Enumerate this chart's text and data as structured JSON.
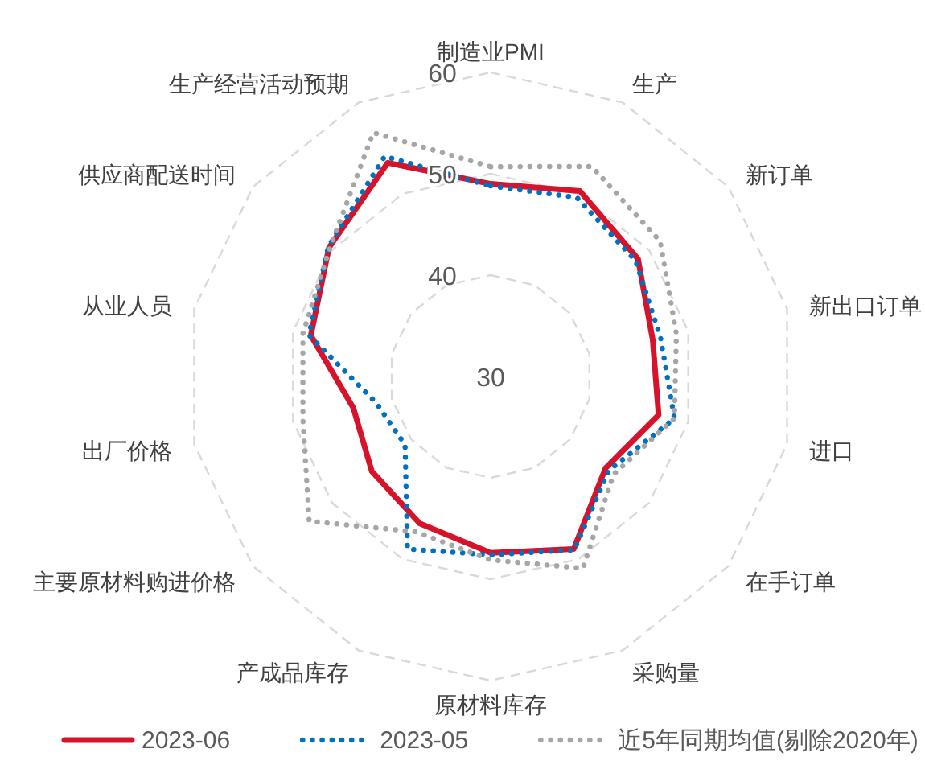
{
  "chart_data": {
    "type": "radar",
    "categories": [
      "制造业PMI",
      "生产",
      "新订单",
      "新出口订单",
      "进口",
      "在手订单",
      "采购量",
      "原材料库存",
      "产成品库存",
      "主要原材料购进价格",
      "出厂价格",
      "从业人员",
      "供应商配送时间",
      "生产经营活动预期"
    ],
    "series": [
      {
        "name": "2023-06",
        "color": "#d7122b",
        "line_style": "solid",
        "values": [
          49.0,
          50.3,
          48.6,
          46.4,
          47.0,
          44.5,
          48.9,
          47.4,
          46.1,
          45.0,
          43.9,
          48.2,
          50.4,
          53.4
        ]
      },
      {
        "name": "2023-05",
        "color": "#0070c0",
        "line_style": "dotted",
        "values": [
          48.8,
          49.6,
          48.3,
          47.2,
          48.6,
          44.9,
          49.0,
          47.6,
          48.9,
          40.8,
          41.6,
          48.4,
          50.5,
          54.1
        ]
      },
      {
        "name": "近5年同期均值(剔除2020年)",
        "color": "#a6a6a6",
        "line_style": "dotted",
        "values": [
          50.7,
          53.0,
          51.4,
          48.8,
          48.6,
          45.5,
          51.0,
          48.1,
          47.0,
          52.9,
          49.0,
          49.0,
          50.3,
          56.7
        ]
      }
    ],
    "ylim": [
      30,
      60
    ],
    "yticks": [
      30,
      40,
      50,
      60
    ],
    "grid": true,
    "legend": "bottom"
  }
}
